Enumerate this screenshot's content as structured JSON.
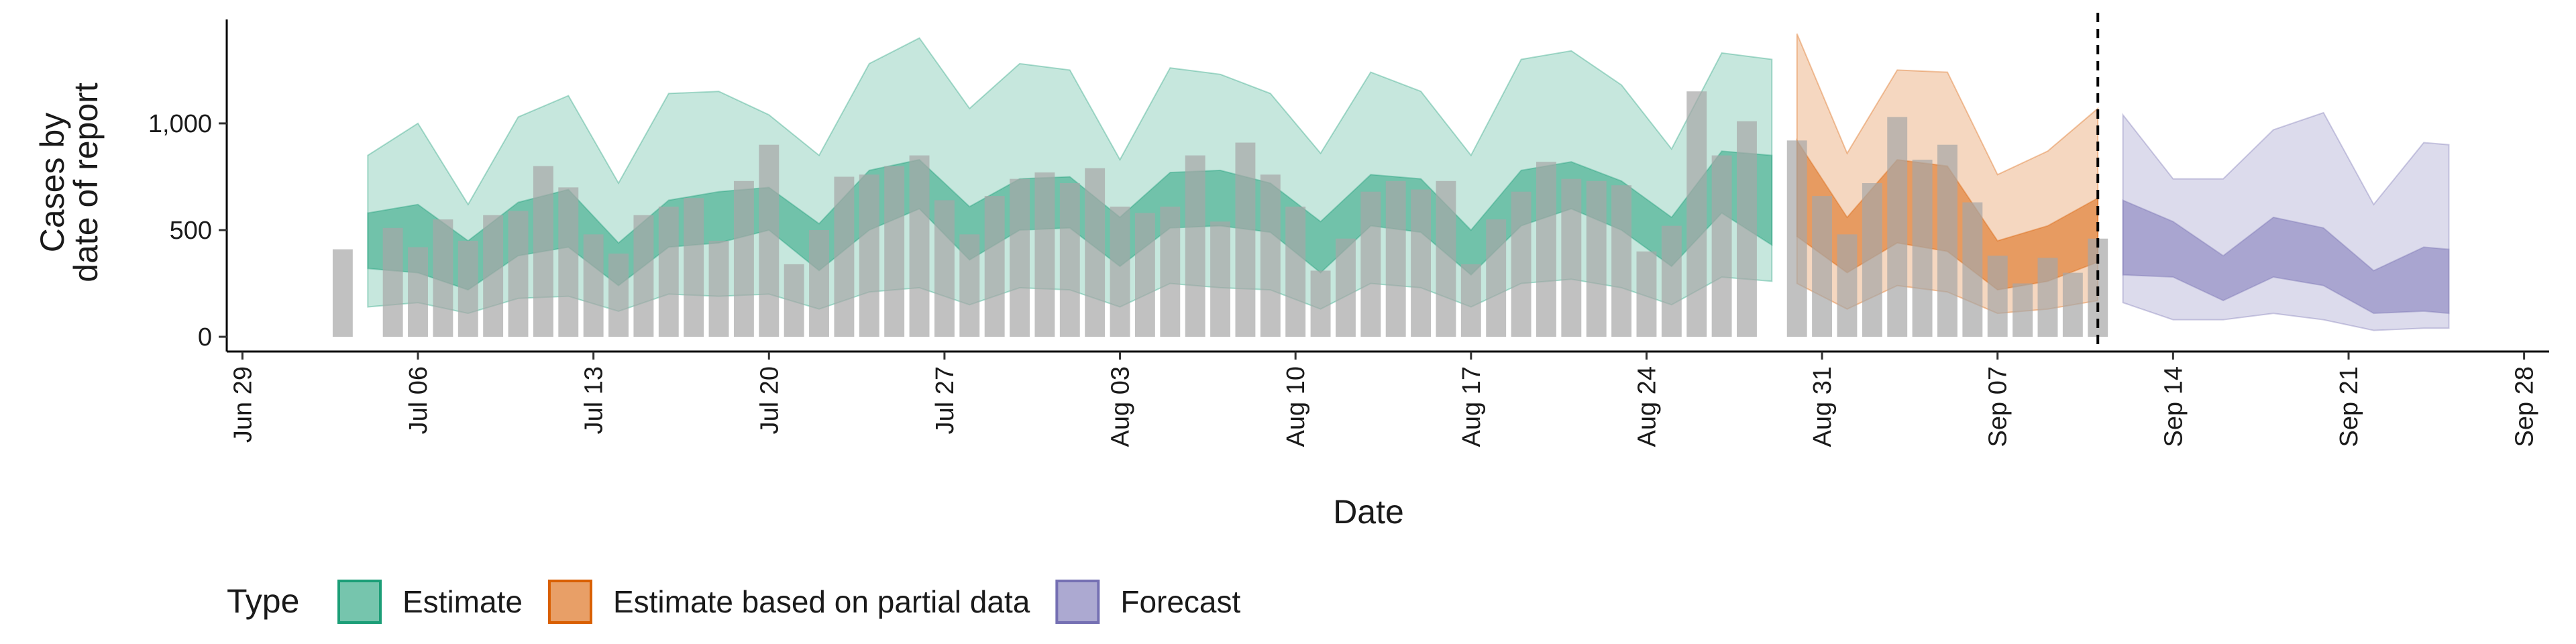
{
  "chart_data": {
    "type": "area",
    "xlabel": "Date",
    "ylabel": [
      "Cases by",
      "date of report"
    ],
    "xlim": [
      "Jun 28",
      "Sep 29"
    ],
    "ylim": [
      -69,
      1487
    ],
    "xticks": [
      "Jun 29",
      "Jul 06",
      "Jul 13",
      "Jul 20",
      "Jul 27",
      "Aug 03",
      "Aug 10",
      "Aug 17",
      "Aug 24",
      "Aug 31",
      "Sep 07",
      "Sep 14",
      "Sep 21",
      "Sep 28"
    ],
    "yticks": [
      0,
      500,
      {
        "value": 1000,
        "label": "1,000"
      }
    ],
    "legend_title": "Type",
    "legend": "bottom",
    "vline": "Sep 11",
    "bars": {
      "color": "#a6a6a6",
      "x": [
        "Jul 03",
        "Jul 04",
        "Jul 05",
        "Jul 06",
        "Jul 07",
        "Jul 08",
        "Jul 09",
        "Jul 10",
        "Jul 11",
        "Jul 12",
        "Jul 13",
        "Jul 14",
        "Jul 15",
        "Jul 16",
        "Jul 17",
        "Jul 18",
        "Jul 19",
        "Jul 20",
        "Jul 21",
        "Jul 22",
        "Jul 23",
        "Jul 24",
        "Jul 25",
        "Jul 26",
        "Jul 27",
        "Jul 28",
        "Jul 29",
        "Jul 30",
        "Jul 31",
        "Aug 01",
        "Aug 02",
        "Aug 03",
        "Aug 04",
        "Aug 05",
        "Aug 06",
        "Aug 07",
        "Aug 08",
        "Aug 09",
        "Aug 10",
        "Aug 11",
        "Aug 12",
        "Aug 13",
        "Aug 14",
        "Aug 15",
        "Aug 16",
        "Aug 17",
        "Aug 18",
        "Aug 19",
        "Aug 20",
        "Aug 21",
        "Aug 22",
        "Aug 23",
        "Aug 24",
        "Aug 25",
        "Aug 26",
        "Aug 27",
        "Aug 28",
        "Aug 29",
        "Aug 30",
        "Aug 31",
        "Sep 01",
        "Sep 02",
        "Sep 03",
        "Sep 04",
        "Sep 05",
        "Sep 06",
        "Sep 07",
        "Sep 08",
        "Sep 09",
        "Sep 10",
        "Sep 11"
      ],
      "values": [
        410,
        null,
        510,
        420,
        550,
        450,
        570,
        590,
        800,
        700,
        480,
        390,
        570,
        610,
        650,
        450,
        730,
        900,
        340,
        500,
        750,
        760,
        800,
        850,
        640,
        480,
        660,
        740,
        770,
        720,
        790,
        610,
        580,
        610,
        850,
        540,
        910,
        760,
        610,
        310,
        460,
        680,
        730,
        690,
        730,
        340,
        550,
        680,
        820,
        740,
        730,
        710,
        400,
        520,
        1150,
        850,
        1010,
        null,
        920,
        660,
        480,
        720,
        1030,
        830,
        900,
        630,
        380,
        250,
        370,
        300,
        460
      ]
    },
    "series": [
      {
        "name": "Estimate",
        "color": "#1b9e77",
        "x": [
          "Jul 04",
          "Jul 06",
          "Jul 08",
          "Jul 10",
          "Jul 12",
          "Jul 14",
          "Jul 16",
          "Jul 18",
          "Jul 20",
          "Jul 22",
          "Jul 24",
          "Jul 26",
          "Jul 28",
          "Jul 30",
          "Aug 01",
          "Aug 03",
          "Aug 05",
          "Aug 07",
          "Aug 09",
          "Aug 11",
          "Aug 13",
          "Aug 15",
          "Aug 17",
          "Aug 19",
          "Aug 21",
          "Aug 23",
          "Aug 25",
          "Aug 27",
          "Aug 29"
        ],
        "upper_90": [
          850,
          1000,
          620,
          1030,
          1130,
          720,
          1140,
          1150,
          1040,
          850,
          1280,
          1400,
          1070,
          1280,
          1250,
          830,
          1260,
          1230,
          1140,
          860,
          1240,
          1150,
          850,
          1300,
          1340,
          1180,
          880,
          1330,
          1300
        ],
        "upper_50": [
          580,
          620,
          450,
          630,
          690,
          440,
          640,
          680,
          700,
          530,
          780,
          830,
          610,
          740,
          750,
          560,
          770,
          780,
          720,
          540,
          760,
          740,
          500,
          780,
          820,
          730,
          560,
          870,
          850
        ],
        "lower_50": [
          320,
          300,
          220,
          380,
          420,
          240,
          420,
          440,
          500,
          310,
          500,
          600,
          360,
          500,
          510,
          330,
          510,
          520,
          490,
          300,
          520,
          490,
          290,
          520,
          600,
          500,
          330,
          580,
          430
        ],
        "lower_90": [
          140,
          160,
          110,
          180,
          190,
          120,
          200,
          190,
          200,
          130,
          210,
          230,
          150,
          230,
          220,
          140,
          250,
          230,
          220,
          130,
          250,
          230,
          140,
          250,
          270,
          230,
          150,
          280,
          260
        ]
      },
      {
        "name": "Estimate based on partial data",
        "color": "#d95f02",
        "x": [
          "Aug 30",
          "Sep 01",
          "Sep 03",
          "Sep 05",
          "Sep 07",
          "Sep 09",
          "Sep 11"
        ],
        "upper_90": [
          1420,
          860,
          1250,
          1240,
          760,
          870,
          1070
        ],
        "upper_50": [
          920,
          560,
          830,
          800,
          450,
          520,
          650
        ],
        "lower_50": [
          470,
          300,
          440,
          400,
          220,
          260,
          350
        ],
        "lower_90": [
          250,
          130,
          240,
          210,
          110,
          130,
          170
        ]
      },
      {
        "name": "Forecast",
        "color": "#7570b3",
        "x": [
          "Sep 12",
          "Sep 14",
          "Sep 16",
          "Sep 18",
          "Sep 20",
          "Sep 22",
          "Sep 24",
          "Sep 25"
        ],
        "upper_90": [
          1040,
          740,
          740,
          970,
          1050,
          620,
          910,
          900
        ],
        "upper_50": [
          640,
          540,
          380,
          560,
          510,
          310,
          420,
          410
        ],
        "lower_50": [
          290,
          280,
          170,
          280,
          240,
          110,
          120,
          110
        ],
        "lower_90": [
          160,
          80,
          80,
          110,
          80,
          30,
          40,
          40
        ]
      }
    ]
  }
}
